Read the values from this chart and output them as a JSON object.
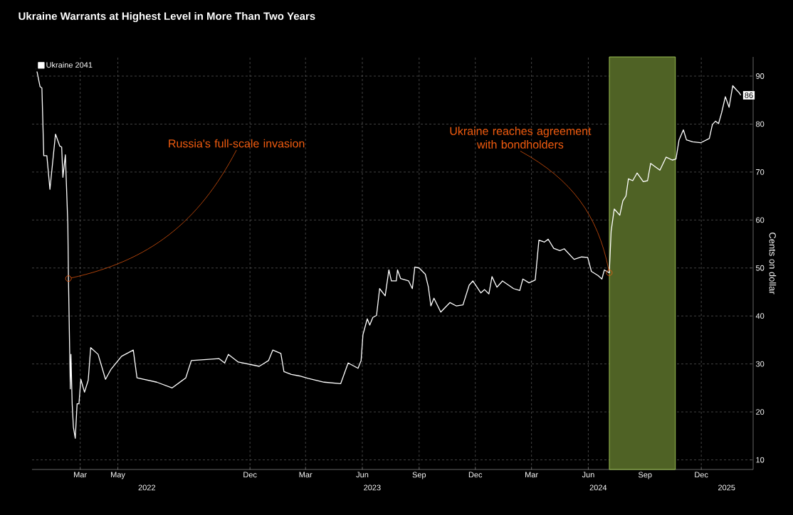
{
  "chart_data": {
    "type": "line",
    "title": "Ukraine Warrants at Highest Level in More Than Two Years",
    "ylabel": "Cents on dollar",
    "x": [
      "2022-01-03",
      "2022-01-09",
      "2022-01-12",
      "2022-01-15",
      "2022-01-20",
      "2022-01-25",
      "2022-02-03",
      "2022-02-10",
      "2022-02-13",
      "2022-02-15",
      "2022-02-19",
      "2022-02-23",
      "2022-02-24",
      "2022-02-27",
      "2022-02-28",
      "2022-03-02",
      "2022-03-04",
      "2022-03-07",
      "2022-03-10",
      "2022-03-13",
      "2022-03-16",
      "2022-03-22",
      "2022-03-28",
      "2022-04-01",
      "2022-04-13",
      "2022-04-25",
      "2022-05-04",
      "2022-05-21",
      "2022-06-09",
      "2022-06-15",
      "2022-07-17",
      "2022-08-11",
      "2022-09-02",
      "2022-09-11",
      "2022-10-26",
      "2022-11-04",
      "2022-11-10",
      "2022-11-26",
      "2022-12-30",
      "2023-01-14",
      "2023-01-21",
      "2023-02-03",
      "2023-02-08",
      "2023-02-20",
      "2023-03-05",
      "2023-03-19",
      "2023-04-14",
      "2023-05-11",
      "2023-05-23",
      "2023-06-08",
      "2023-06-13",
      "2023-06-16",
      "2023-06-23",
      "2023-06-27",
      "2023-07-02",
      "2023-07-08",
      "2023-07-13",
      "2023-07-22",
      "2023-07-28",
      "2023-08-01",
      "2023-08-09",
      "2023-08-11",
      "2023-08-16",
      "2023-08-29",
      "2023-09-04",
      "2023-09-08",
      "2023-09-15",
      "2023-09-25",
      "2023-09-30",
      "2023-10-04",
      "2023-10-09",
      "2023-10-20",
      "2023-11-04",
      "2023-11-14",
      "2023-11-25",
      "2023-12-05",
      "2023-12-11",
      "2023-12-24",
      "2023-12-30",
      "2024-01-06",
      "2024-01-11",
      "2024-01-19",
      "2024-01-28",
      "2024-02-15",
      "2024-02-25",
      "2024-03-01",
      "2024-03-11",
      "2024-03-21",
      "2024-03-27",
      "2024-04-05",
      "2024-04-11",
      "2024-04-20",
      "2024-04-30",
      "2024-05-07",
      "2024-05-23",
      "2024-06-04",
      "2024-06-14",
      "2024-06-20",
      "2024-07-01",
      "2024-07-07",
      "2024-07-11",
      "2024-07-19",
      "2024-07-22",
      "2024-07-27",
      "2024-08-05",
      "2024-08-10",
      "2024-08-15",
      "2024-08-19",
      "2024-08-26",
      "2024-09-02",
      "2024-09-12",
      "2024-09-19",
      "2024-09-24",
      "2024-10-09",
      "2024-10-19",
      "2024-10-29",
      "2024-11-04",
      "2024-11-09",
      "2024-11-16",
      "2024-11-21",
      "2024-12-01",
      "2024-12-14",
      "2024-12-28",
      "2025-01-02",
      "2025-01-07",
      "2025-01-12",
      "2025-01-17",
      "2025-01-23",
      "2025-01-29",
      "2025-02-04",
      "2025-02-10",
      "2025-02-14",
      "2025-02-17"
    ],
    "series": [
      {
        "name": "Ukraine 2041",
        "color": "#ffffff",
        "values": [
          91.6,
          87.8,
          87.5,
          73.4,
          73.4,
          66.4,
          77.9,
          75.4,
          75.2,
          68.9,
          73.6,
          59,
          47.8,
          24.8,
          32,
          21.7,
          16.8,
          14.5,
          21.7,
          21.7,
          26.8,
          24.1,
          26.6,
          33.4,
          32,
          26.8,
          28.9,
          31.6,
          32.9,
          27.1,
          26.2,
          25,
          27.1,
          30.7,
          31.1,
          30.2,
          32,
          30.4,
          29.5,
          30.7,
          32.9,
          32.2,
          28.4,
          27.8,
          27.5,
          27,
          26.2,
          25.9,
          30.2,
          29.1,
          30.7,
          36.1,
          39.4,
          38.1,
          39.7,
          40.1,
          45.7,
          44.2,
          49.6,
          47.3,
          47.3,
          49.6,
          47.8,
          47.3,
          45.7,
          50.2,
          50,
          48.7,
          46,
          42.1,
          43.7,
          40.8,
          42.8,
          42.1,
          42.3,
          46.4,
          47.3,
          44.8,
          45.5,
          44.6,
          48.2,
          46,
          47.3,
          45.7,
          45.3,
          47.7,
          46.9,
          47.5,
          55.8,
          55.4,
          56,
          54.1,
          53.6,
          54,
          51.8,
          52.3,
          52.2,
          49.3,
          48.4,
          47.7,
          49.6,
          49,
          57.7,
          62.3,
          61,
          64,
          65,
          68.6,
          68.2,
          69.8,
          68,
          68.2,
          71.8,
          70.4,
          73.1,
          72.5,
          72.7,
          76.7,
          78.8,
          76.7,
          76.3,
          76.1,
          77,
          79.9,
          80.6,
          80.1,
          82.4,
          85.7,
          83.5,
          88,
          87.1,
          86.6,
          86
        ],
        "value_labels": [
          null,
          null,
          null,
          null,
          null,
          null,
          null,
          null,
          null,
          null,
          null,
          null,
          null,
          null,
          null,
          null,
          null,
          null,
          null,
          null,
          null,
          null,
          null,
          null,
          null,
          null,
          null,
          null,
          null,
          null,
          null,
          null,
          null,
          null,
          null,
          null,
          null,
          null,
          null,
          null,
          null,
          null,
          null,
          null,
          null,
          null,
          null,
          null,
          null,
          null,
          null,
          null,
          null,
          null,
          null,
          null,
          null,
          null,
          null,
          null,
          null,
          null,
          null,
          null,
          null,
          null,
          null,
          null,
          null,
          null,
          null,
          null,
          null,
          null,
          null,
          null,
          null,
          null,
          null,
          null,
          null,
          null,
          null,
          null,
          null,
          null,
          null,
          null,
          null,
          null,
          null,
          null,
          null,
          null,
          null,
          null,
          null,
          null,
          null,
          null,
          null,
          null,
          null,
          null,
          null,
          null,
          null,
          null,
          null,
          null,
          null,
          null,
          null,
          null,
          null,
          null,
          null,
          null,
          null,
          null,
          null,
          null,
          null,
          null,
          null,
          null,
          null,
          null,
          null,
          null,
          null,
          null,
          "86"
        ]
      }
    ],
    "xlim": [
      "2021-12-27",
      "2025-03-09"
    ],
    "ylim": [
      8,
      94
    ],
    "xticks": [
      {
        "value": "2022-03-15",
        "label": "Mar"
      },
      {
        "value": "2022-05-15",
        "label": "May"
      },
      {
        "value": "2022-12-15",
        "label": "Dec"
      },
      {
        "value": "2023-03-15",
        "label": "Mar"
      },
      {
        "value": "2023-06-15",
        "label": "Jun"
      },
      {
        "value": "2023-09-15",
        "label": "Sep"
      },
      {
        "value": "2023-12-15",
        "label": "Dec"
      },
      {
        "value": "2024-03-15",
        "label": "Mar"
      },
      {
        "value": "2024-06-15",
        "label": "Jun"
      },
      {
        "value": "2024-09-15",
        "label": "Sep"
      },
      {
        "value": "2024-12-15",
        "label": "Dec"
      }
    ],
    "x2lim": [
      "2021-12-27",
      "2025-03-09"
    ],
    "x2ticks": [
      {
        "value": "2022-07-01",
        "label": "2022"
      },
      {
        "value": "2023-07-01",
        "label": "2023"
      },
      {
        "value": "2024-07-01",
        "label": "2024"
      },
      {
        "value": "2025-01-25",
        "label": "2025"
      }
    ],
    "yticks": [
      10,
      20,
      30,
      40,
      50,
      60,
      70,
      80,
      90
    ],
    "grid": true,
    "legend": "top left",
    "bands": [
      {
        "axis": "x",
        "from": "2024-07-19",
        "to": "2024-11-03",
        "color": "#4f6225"
      }
    ],
    "annotations": [
      {
        "text": "Russia's full-scale invasion",
        "x": "2022-02-24",
        "y": 47.8
      },
      {
        "text": "Ukraine reaches agreement with bondholders",
        "x": "2024-07-19",
        "y": 49
      }
    ]
  }
}
